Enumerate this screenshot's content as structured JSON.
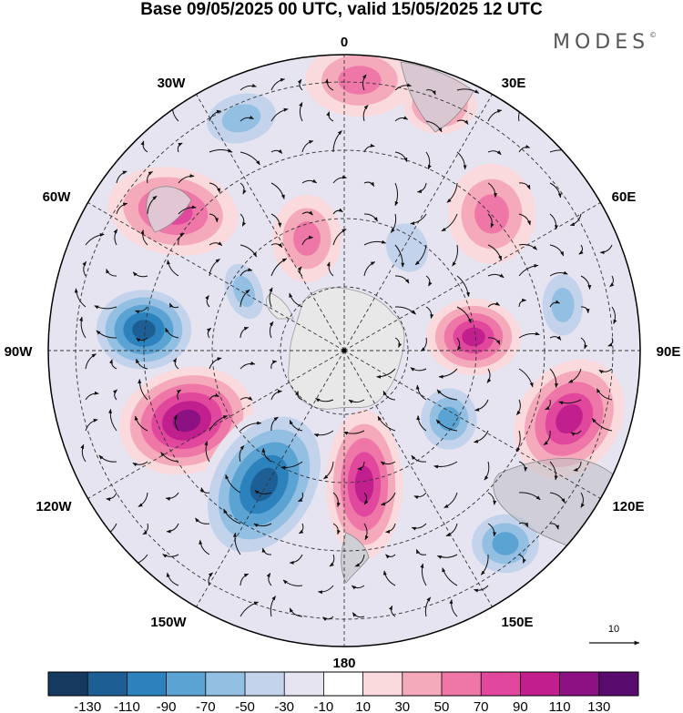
{
  "header": {
    "title": "Base 09/05/2025 00 UTC, valid 15/05/2025 12 UTC",
    "logo_text": "MODES",
    "logo_mark": "©"
  },
  "map": {
    "projection": "south polar stereographic",
    "longitude_labels": {
      "lon_0": "0",
      "lon_30e": "30E",
      "lon_60e": "60E",
      "lon_90e": "90E",
      "lon_120e": "120E",
      "lon_150e": "150E",
      "lon_180": "180",
      "lon_150w": "150W",
      "lon_120w": "120W",
      "lon_90w": "90W",
      "lon_60w": "60W",
      "lon_30w": "30W"
    },
    "reference_vector_label": "10",
    "anomaly_centers": [
      {
        "sign": "positive",
        "lon": "0",
        "level": 50
      },
      {
        "sign": "negative",
        "lon": "25W",
        "level": -50
      },
      {
        "sign": "positive",
        "lon": "60W",
        "level": 70
      },
      {
        "sign": "positive",
        "lon": "10W",
        "level": 50
      },
      {
        "sign": "negative",
        "lon": "80W",
        "level": -110
      },
      {
        "sign": "negative",
        "lon": "70W",
        "level": -50
      },
      {
        "sign": "positive",
        "lon": "110W",
        "level": 110
      },
      {
        "sign": "negative",
        "lon": "145W",
        "level": -110
      },
      {
        "sign": "positive",
        "lon": "175E",
        "level": 90
      },
      {
        "sign": "negative",
        "lon": "130E",
        "level": -70
      },
      {
        "sign": "negative",
        "lon": "120E",
        "level": -70
      },
      {
        "sign": "positive",
        "lon": "105E",
        "level": 90
      },
      {
        "sign": "positive",
        "lon": "85E",
        "level": 90
      },
      {
        "sign": "negative",
        "lon": "70E",
        "level": -50
      },
      {
        "sign": "positive",
        "lon": "40E",
        "level": 50
      },
      {
        "sign": "negative",
        "lon": "30E",
        "level": -30
      },
      {
        "sign": "positive",
        "lon": "15E",
        "level": 70
      }
    ]
  },
  "colorbar": {
    "tick_labels": [
      "-130",
      "-110",
      "-90",
      "-70",
      "-50",
      "-30",
      "-10",
      "10",
      "30",
      "50",
      "70",
      "90",
      "110",
      "130"
    ],
    "colors": [
      "#163a5f",
      "#1d5f95",
      "#2c82bd",
      "#5aa3d3",
      "#93bfe2",
      "#c3d3eb",
      "#e6e4f1",
      "#ffffff",
      "#fbdadd",
      "#f5aabb",
      "#ee77a8",
      "#e0479d",
      "#c11e8e",
      "#8c1283",
      "#5a0c6e"
    ]
  }
}
